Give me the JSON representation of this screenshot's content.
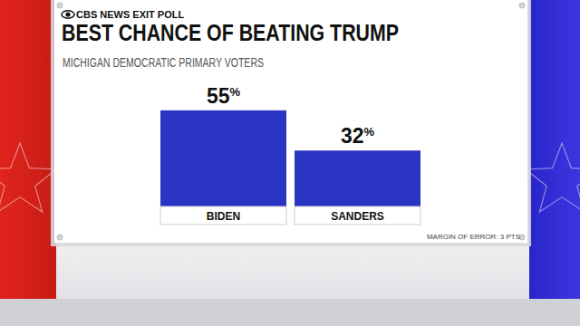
{
  "chart_data": {
    "type": "bar",
    "header": "CBS NEWS EXIT POLL",
    "title": "BEST CHANCE OF BEATING TRUMP",
    "subtitle": "MICHIGAN DEMOCRATIC PRIMARY VOTERS",
    "categories": [
      "BIDEN",
      "SANDERS"
    ],
    "values": [
      55,
      32
    ],
    "value_labels": [
      "55%",
      "32%"
    ],
    "color": "#2a35c4",
    "data_labels": true,
    "tick_labels": "x",
    "grid": false,
    "annotation": "MARGIN OF ERROR: 3 PTS"
  }
}
